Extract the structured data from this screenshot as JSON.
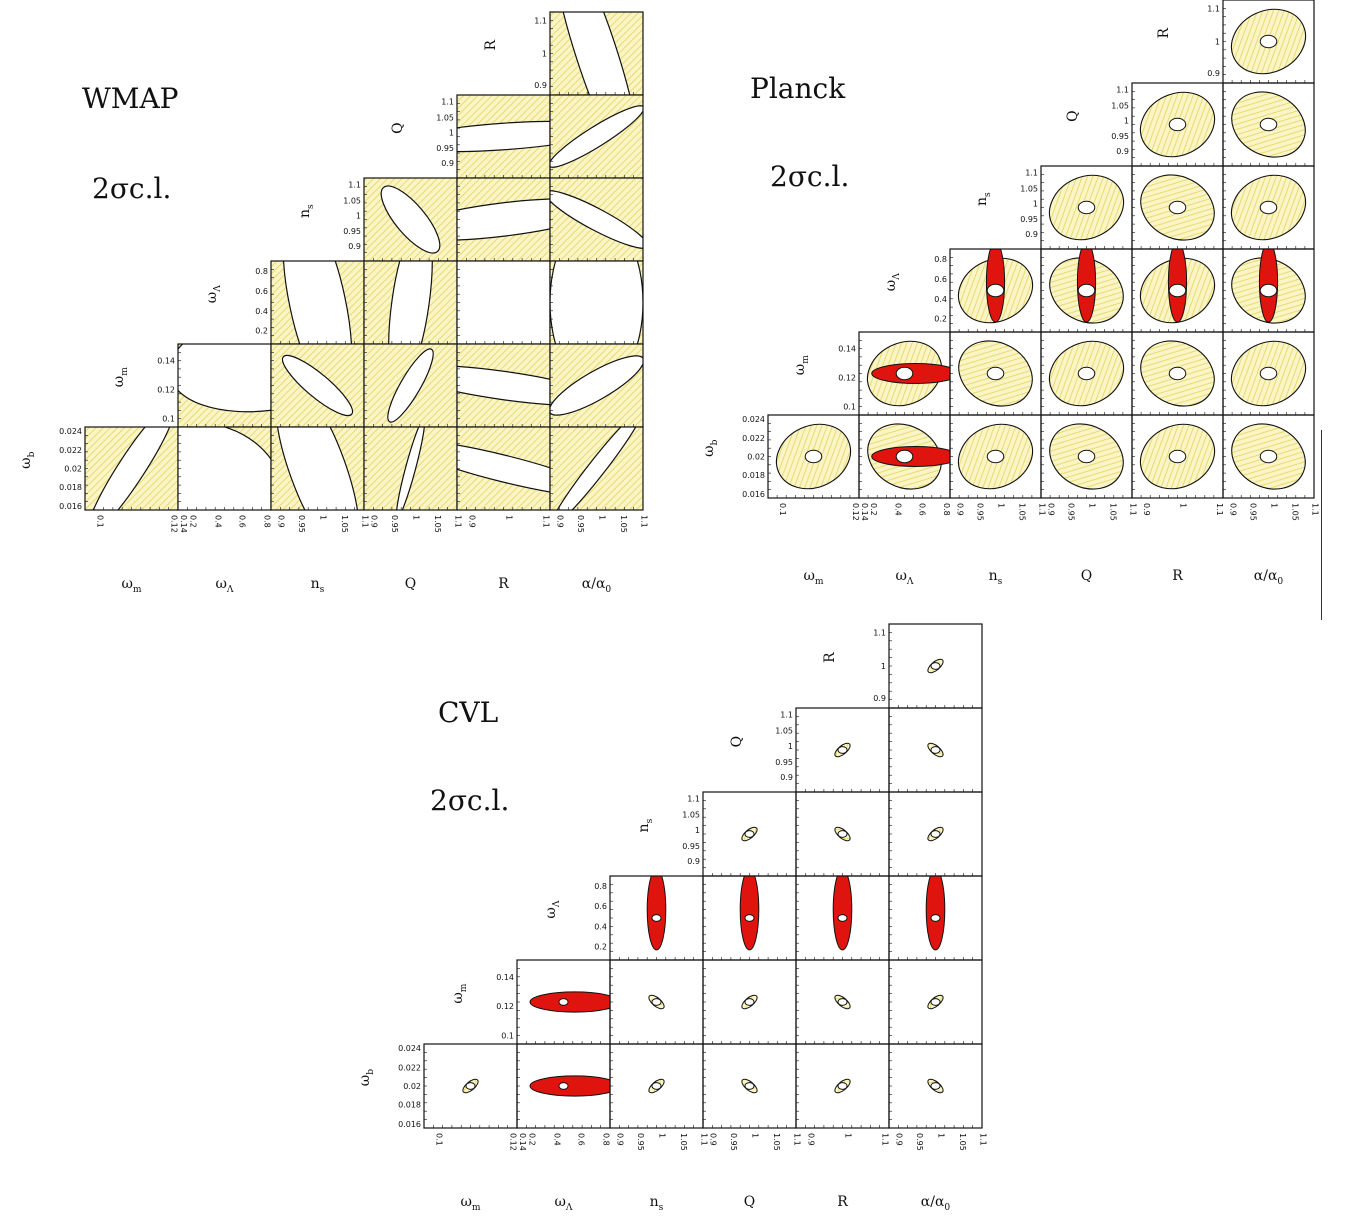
{
  "colors": {
    "fill_yellow": "#fbf5c6",
    "hatch": "#e2d45e",
    "fill_red": "#e0140f",
    "frame": "#111111",
    "background": "#ffffff"
  },
  "chart_data": [
    {
      "type": "triangle-contour-grid",
      "experiment": "WMAP",
      "title": "WMAP",
      "subtitle": "2σc.l.",
      "params": [
        {
          "label": "ω_m",
          "y_ticks": [],
          "x_ticks": [
            "0.1",
            "0.12",
            "0.14"
          ]
        },
        {
          "label": "ω_Λ",
          "y_ticks": [],
          "x_ticks": [
            "0.2",
            "0.4",
            "0.6",
            "0.8"
          ]
        },
        {
          "label": "n_s",
          "y_ticks": [],
          "x_ticks": [
            "0.9",
            "0.95",
            "1",
            "1.05",
            "1.1"
          ]
        },
        {
          "label": "Q",
          "y_ticks": [],
          "x_ticks": [
            "0.9",
            "0.95",
            "1",
            "1.05",
            "1.1"
          ]
        },
        {
          "label": "R",
          "y_ticks": [],
          "x_ticks": [
            "0.9",
            "1",
            "1.1"
          ]
        },
        {
          "label": "α/α_0",
          "y_ticks": [],
          "x_ticks": [
            "0.9",
            "0.95",
            "1",
            "1.05",
            "1.1"
          ]
        }
      ],
      "row_labels": [
        {
          "label": "R",
          "ticks": [
            "1.1",
            "1",
            "0.9"
          ]
        },
        {
          "label": "Q",
          "ticks": [
            "1.1",
            "1.05",
            "1",
            "0.95",
            "0.9"
          ]
        },
        {
          "label": "n_s",
          "ticks": [
            "1.1",
            "1.05",
            "1",
            "0.95",
            "0.9"
          ]
        },
        {
          "label": "ω_Λ",
          "ticks": [
            "0.8",
            "0.6",
            "0.4",
            "0.2"
          ]
        },
        {
          "label": "ω_m",
          "ticks": [
            "0.14",
            "0.12",
            "0.1"
          ]
        },
        {
          "label": "ω_b",
          "ticks": [
            "0.024",
            "0.022",
            "0.02",
            "0.018",
            "0.016"
          ]
        }
      ],
      "contours_2sigma": [
        {
          "row": "R",
          "col": "α/α_0",
          "cx": 0.5,
          "cy": 0.5,
          "rx": 0.22,
          "ry": 1.5,
          "rot": -18
        },
        {
          "row": "Q",
          "col": "R",
          "cx": 0.5,
          "cy": 0.5,
          "rx": 1.1,
          "ry": 0.16,
          "rot": -4
        },
        {
          "row": "Q",
          "col": "α/α_0",
          "cx": 0.5,
          "cy": 0.5,
          "rx": 0.6,
          "ry": 0.12,
          "rot": -32
        },
        {
          "row": "n_s",
          "col": "Q",
          "cx": 0.5,
          "cy": 0.5,
          "rx": 0.45,
          "ry": 0.18,
          "rot": 50
        },
        {
          "row": "n_s",
          "col": "R",
          "cx": 0.5,
          "cy": 0.5,
          "rx": 1.1,
          "ry": 0.2,
          "rot": -7
        },
        {
          "row": "n_s",
          "col": "α/α_0",
          "cx": 0.5,
          "cy": 0.5,
          "rx": 0.62,
          "ry": 0.13,
          "rot": 28
        },
        {
          "row": "ω_Λ",
          "col": "n_s",
          "cx": 0.5,
          "cy": 0.5,
          "rx": 0.3,
          "ry": 1.2,
          "rot": -12
        },
        {
          "row": "ω_Λ",
          "col": "Q",
          "cx": 0.5,
          "cy": 0.5,
          "rx": 0.2,
          "ry": 1.0,
          "rot": 8
        },
        {
          "row": "ω_Λ",
          "col": "R",
          "cx": 0.5,
          "cy": 0.5,
          "rx": 2.0,
          "ry": 2.0,
          "rot": 0
        },
        {
          "row": "ω_Λ",
          "col": "α/α_0",
          "cx": 0.5,
          "cy": 0.5,
          "rx": 0.5,
          "ry": 1.05,
          "rot": 0
        },
        {
          "row": "ω_m",
          "col": "ω_Λ",
          "cx": 0.95,
          "cy": 0.2,
          "rx": 1.05,
          "ry": 0.6,
          "rot": -8
        },
        {
          "row": "ω_m",
          "col": "n_s",
          "cx": 0.5,
          "cy": 0.5,
          "rx": 0.48,
          "ry": 0.14,
          "rot": 40
        },
        {
          "row": "ω_m",
          "col": "Q",
          "cx": 0.5,
          "cy": 0.5,
          "rx": 0.45,
          "ry": 0.12,
          "rot": -60
        },
        {
          "row": "ω_m",
          "col": "R",
          "cx": 0.5,
          "cy": 0.5,
          "rx": 1.1,
          "ry": 0.17,
          "rot": 8
        },
        {
          "row": "ω_m",
          "col": "α/α_0",
          "cx": 0.5,
          "cy": 0.5,
          "rx": 0.58,
          "ry": 0.17,
          "rot": -30
        },
        {
          "row": "ω_b",
          "col": "ω_m",
          "cx": 0.5,
          "cy": 0.5,
          "rx": 0.85,
          "ry": 0.16,
          "rot": -57
        },
        {
          "row": "ω_b",
          "col": "ω_Λ",
          "cx": 0.2,
          "cy": 0.9,
          "rx": 0.95,
          "ry": 0.95,
          "rot": 0
        },
        {
          "row": "ω_b",
          "col": "n_s",
          "cx": 0.5,
          "cy": 0.5,
          "rx": 0.3,
          "ry": 1.15,
          "rot": -20
        },
        {
          "row": "ω_b",
          "col": "Q",
          "cx": 0.5,
          "cy": 0.5,
          "rx": 0.55,
          "ry": 0.06,
          "rot": -75
        },
        {
          "row": "ω_b",
          "col": "R",
          "cx": 0.5,
          "cy": 0.5,
          "rx": 1.1,
          "ry": 0.16,
          "rot": 14
        },
        {
          "row": "ω_b",
          "col": "α/α_0",
          "cx": 0.5,
          "cy": 0.5,
          "rx": 0.8,
          "ry": 0.1,
          "rot": -52
        }
      ]
    },
    {
      "type": "triangle-contour-grid",
      "experiment": "Planck",
      "title": "Planck",
      "subtitle": "2σc.l.",
      "params": [
        {
          "label": "ω_m",
          "x_ticks": [
            "0.1",
            "0.12",
            "0.14"
          ]
        },
        {
          "label": "ω_Λ",
          "x_ticks": [
            "0.2",
            "0.4",
            "0.6",
            "0.8"
          ]
        },
        {
          "label": "n_s",
          "x_ticks": [
            "0.9",
            "0.95",
            "1",
            "1.05",
            "1.1"
          ]
        },
        {
          "label": "Q",
          "x_ticks": [
            "0.9",
            "0.95",
            "1",
            "1.05",
            "1.1"
          ]
        },
        {
          "label": "R",
          "x_ticks": [
            "0.9",
            "1",
            "1.1"
          ]
        },
        {
          "label": "α/α_0",
          "x_ticks": [
            "0.9",
            "0.95",
            "1",
            "1.05",
            "1.1"
          ]
        }
      ],
      "row_labels": [
        {
          "label": "R",
          "ticks": [
            "1.1",
            "1",
            "0.9"
          ]
        },
        {
          "label": "Q",
          "ticks": [
            "1.1",
            "1.05",
            "1",
            "0.95",
            "0.9"
          ]
        },
        {
          "label": "n_s",
          "ticks": [
            "1.1",
            "1.05",
            "1",
            "0.95",
            "0.9"
          ]
        },
        {
          "label": "ω_Λ",
          "ticks": [
            "0.8",
            "0.6",
            "0.4",
            "0.2"
          ]
        },
        {
          "label": "ω_m",
          "ticks": [
            "0.14",
            "0.12",
            "0.1"
          ]
        },
        {
          "label": "ω_b",
          "ticks": [
            "0.024",
            "0.022",
            "0.02",
            "0.018",
            "0.016"
          ]
        }
      ]
    },
    {
      "type": "triangle-contour-grid",
      "experiment": "CVL",
      "title": "CVL",
      "subtitle": "2σc.l.",
      "params": [
        {
          "label": "ω_m",
          "x_ticks": [
            "0.1",
            "0.12",
            "0.14"
          ]
        },
        {
          "label": "ω_Λ",
          "x_ticks": [
            "0.2",
            "0.4",
            "0.6",
            "0.8"
          ]
        },
        {
          "label": "n_s",
          "x_ticks": [
            "0.9",
            "0.95",
            "1",
            "1.05",
            "1.1"
          ]
        },
        {
          "label": "Q",
          "x_ticks": [
            "0.9",
            "0.95",
            "1",
            "1.05",
            "1.1"
          ]
        },
        {
          "label": "R",
          "x_ticks": [
            "0.9",
            "1",
            "1.1"
          ]
        },
        {
          "label": "α/α_0",
          "x_ticks": [
            "0.9",
            "0.95",
            "1",
            "1.05",
            "1.1"
          ]
        }
      ],
      "row_labels": [
        {
          "label": "R",
          "ticks": [
            "1.1",
            "1",
            "0.9"
          ]
        },
        {
          "label": "Q",
          "ticks": [
            "1.1",
            "1.05",
            "1",
            "0.95",
            "0.9"
          ]
        },
        {
          "label": "n_s",
          "ticks": [
            "1.1",
            "1.05",
            "1",
            "0.95",
            "0.9"
          ]
        },
        {
          "label": "ω_Λ",
          "ticks": [
            "0.8",
            "0.6",
            "0.4",
            "0.2"
          ]
        },
        {
          "label": "ω_m",
          "ticks": [
            "0.14",
            "0.12",
            "0.1"
          ]
        },
        {
          "label": "ω_b",
          "ticks": [
            "0.024",
            "0.022",
            "0.02",
            "0.018",
            "0.016"
          ]
        }
      ]
    }
  ]
}
